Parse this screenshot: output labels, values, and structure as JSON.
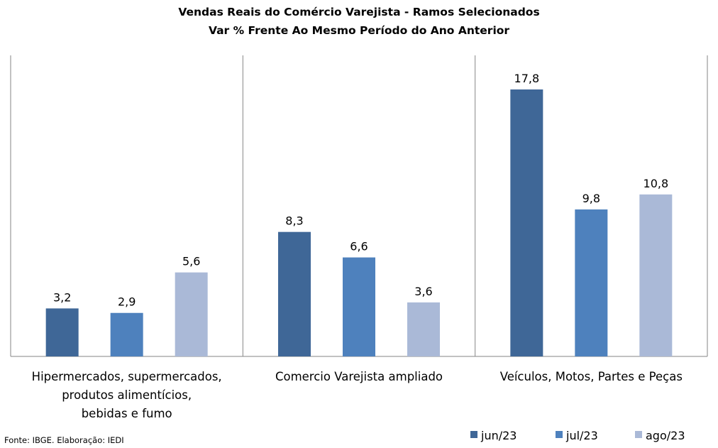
{
  "chart_data": {
    "type": "bar",
    "title": "Vendas Reais do Comércio Varejista - Ramos Selecionados",
    "subtitle": "Var % Frente Ao Mesmo Período do Ano Anterior",
    "categories": [
      [
        "Hipermercados, supermercados,",
        "produtos alimentícios,",
        "bebidas e fumo"
      ],
      [
        "Comercio Varejista ampliado"
      ],
      [
        "Veículos, Motos, Partes e Peças"
      ]
    ],
    "series": [
      {
        "name": "jun/23",
        "color": "#3F6797",
        "values": [
          3.2,
          8.3,
          17.8
        ],
        "labels": [
          "3,2",
          "8,3",
          "17,8"
        ]
      },
      {
        "name": "jul/23",
        "color": "#4E81BD",
        "values": [
          2.9,
          6.6,
          9.8
        ],
        "labels": [
          "2,9",
          "6,6",
          "9,8"
        ]
      },
      {
        "name": "ago/23",
        "color": "#AAB9D7",
        "values": [
          5.6,
          3.6,
          10.8
        ],
        "labels": [
          "5,6",
          "3,6",
          "10,8"
        ]
      }
    ],
    "ylim": [
      0,
      20
    ],
    "grid": false,
    "legend_position": "bottom-right"
  },
  "source_note": "Fonte: IBGE. Elaboração: IEDI"
}
